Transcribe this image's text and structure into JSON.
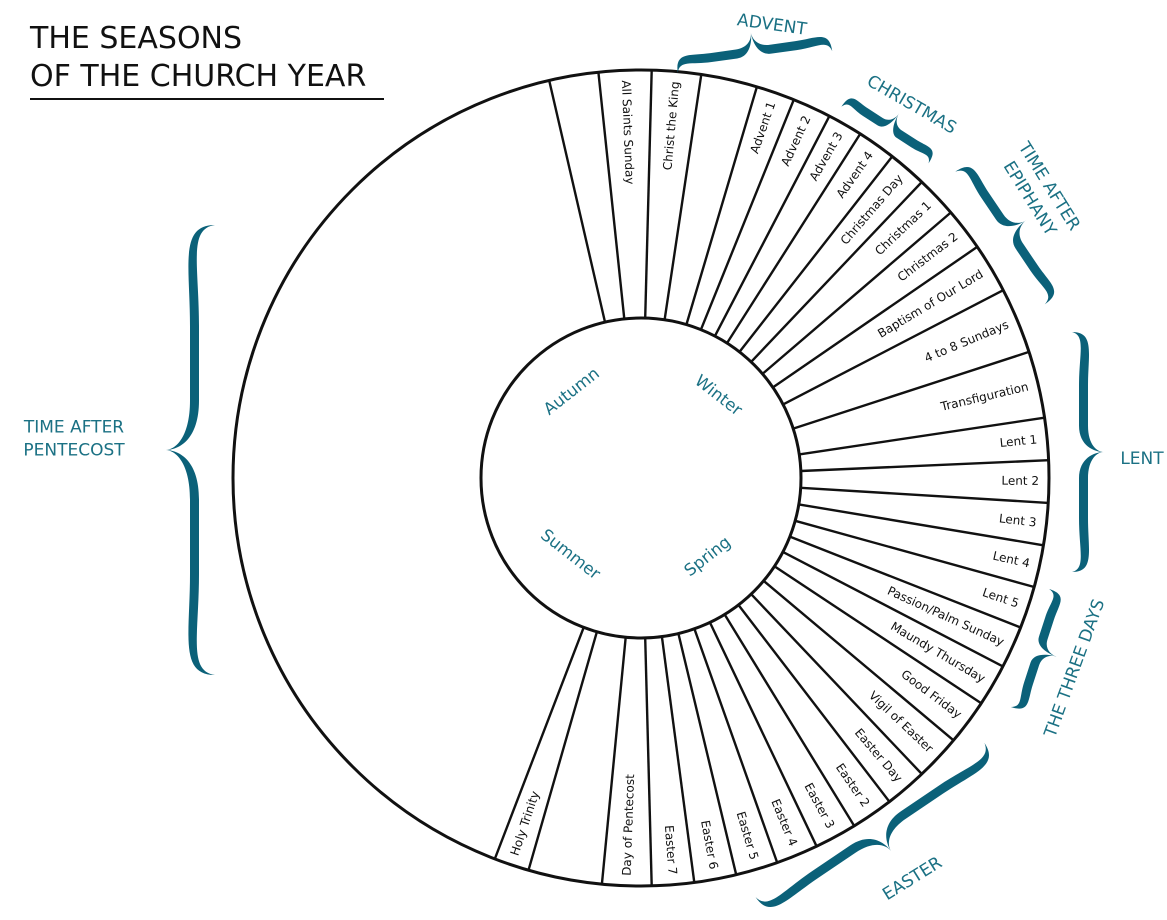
{
  "title": {
    "line1": "THE SEASONS",
    "line2": "OF THE CHURCH YEAR"
  },
  "colors": {
    "accent": "#0b6179",
    "accent_text": "#1b7184",
    "ink": "#111111"
  },
  "inner_seasons": [
    "Autumn",
    "Winter",
    "Summer",
    "Spring"
  ],
  "slots": [
    {
      "id": "blank-autumn",
      "label": ""
    },
    {
      "id": "all-saints-sunday",
      "label": "All Saints Sunday"
    },
    {
      "id": "christ-the-king",
      "label": "Christ the King"
    },
    {
      "id": "blank-top",
      "label": ""
    },
    {
      "id": "advent-1",
      "label": "Advent 1"
    },
    {
      "id": "advent-2",
      "label": "Advent 2"
    },
    {
      "id": "advent-3",
      "label": "Advent 3"
    },
    {
      "id": "advent-4",
      "label": "Advent 4"
    },
    {
      "id": "christmas-day",
      "label": "Christmas Day"
    },
    {
      "id": "christmas-1",
      "label": "Christmas 1"
    },
    {
      "id": "christmas-2",
      "label": "Christmas 2"
    },
    {
      "id": "baptism-of-our-lord",
      "label": "Baptism of Our Lord"
    },
    {
      "id": "4-to-8-sundays",
      "label": "4 to 8 Sundays"
    },
    {
      "id": "transfiguration",
      "label": "Transfiguration"
    },
    {
      "id": "lent-1",
      "label": "Lent 1"
    },
    {
      "id": "lent-2",
      "label": "Lent 2"
    },
    {
      "id": "lent-3",
      "label": "Lent 3"
    },
    {
      "id": "lent-4",
      "label": "Lent 4"
    },
    {
      "id": "lent-5",
      "label": "Lent 5"
    },
    {
      "id": "passion-palm-sunday",
      "label": "Passion/Palm Sunday"
    },
    {
      "id": "maundy-thursday",
      "label": "Maundy Thursday"
    },
    {
      "id": "good-friday",
      "label": "Good Friday"
    },
    {
      "id": "vigil-of-easter",
      "label": "Vigil of Easter"
    },
    {
      "id": "easter-day",
      "label": "Easter Day"
    },
    {
      "id": "easter-2",
      "label": "Easter 2"
    },
    {
      "id": "easter-3",
      "label": "Easter 3"
    },
    {
      "id": "easter-4",
      "label": "Easter 4"
    },
    {
      "id": "easter-5",
      "label": "Easter 5"
    },
    {
      "id": "easter-6",
      "label": "Easter 6"
    },
    {
      "id": "easter-7",
      "label": "Easter 7"
    },
    {
      "id": "day-of-pentecost",
      "label": "Day of Pentecost"
    },
    {
      "id": "blank-bottom",
      "label": ""
    },
    {
      "id": "holy-trinity",
      "label": "Holy Trinity"
    },
    {
      "id": "blank-summer",
      "label": ""
    }
  ],
  "seasons": [
    {
      "id": "advent",
      "lines": [
        "ADVENT"
      ]
    },
    {
      "id": "christmas",
      "lines": [
        "CHRISTMAS"
      ]
    },
    {
      "id": "time-after-epiphany",
      "lines": [
        "TIME AFTER",
        "EPIPHANY"
      ]
    },
    {
      "id": "lent",
      "lines": [
        "LENT"
      ]
    },
    {
      "id": "the-three-days",
      "lines": [
        "THE THREE DAYS"
      ]
    },
    {
      "id": "easter",
      "lines": [
        "EASTER"
      ]
    },
    {
      "id": "time-after-pentecost",
      "lines": [
        "TIME AFTER",
        "PENTECOST"
      ]
    }
  ]
}
